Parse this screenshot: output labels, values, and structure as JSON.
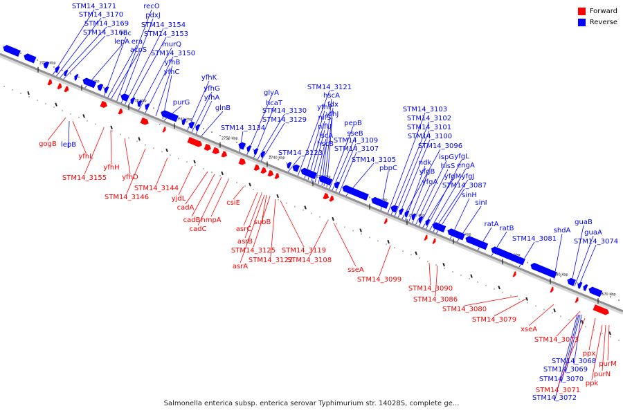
{
  "caption": "Salmonella enterica subsp. enterica serovar Typhimurium str. 14028S, complete ge...",
  "legend": [
    {
      "label": "Forward",
      "color": "#ff0000"
    },
    {
      "label": "Reverse",
      "color": "#0000ff"
    }
  ],
  "colors": {
    "forward": "#ff0000",
    "reverse": "#0000ff",
    "backbone": "#909090"
  },
  "ticks": [
    "2790 kbp",
    "2780 kbp",
    "2770 kbp",
    "2760 kbp",
    "2750 kbp",
    "2740 kbp",
    "2730 kbp",
    "2720 kbp",
    "2710 kbp",
    "2700 kbp",
    "2690 kbp",
    "2680 kbp",
    "2670 kbp"
  ],
  "reverse_labels": [
    "STM14_3171",
    "STM14_3170",
    "STM14_3169",
    "STM14_3168",
    "lepA",
    "rnc",
    "era",
    "acpS",
    "recO",
    "pdxJ",
    "STM14_3154",
    "STM14_3153",
    "murQ",
    "STM14_3150",
    "yfhB",
    "yfhC",
    "purG",
    "yfhK",
    "yfhG",
    "yfhA",
    "glnB",
    "STM14_3134",
    "glyA",
    "hcaT",
    "STM14_3130",
    "STM14_3129",
    "STM14_3123",
    "STM14_3121",
    "yfhP",
    "nifS",
    "nifU",
    "iscA",
    "hscB",
    "hscA",
    "fdx",
    "yfhJ",
    "pepB",
    "sseB",
    "STM14_3109",
    "STM14_3107",
    "STM14_3105",
    "pbpC",
    "STM14_3103",
    "STM14_3102",
    "STM14_3101",
    "STM14_3100",
    "STM14_3096",
    "ndk",
    "yfgB",
    "yfgA",
    "ispG",
    "hisS",
    "yfgM",
    "yfgL",
    "engA",
    "yfgJ",
    "STM14_3087",
    "sinH",
    "sinI",
    "ratA",
    "ratB",
    "STM14_3081",
    "shdA",
    "guaB",
    "guaA",
    "STM14_3074",
    "lepB",
    "STM14_3068",
    "STM14_3069",
    "STM14_3070",
    "STM14_3072"
  ],
  "forward_labels": [
    "gogB",
    "yfhL",
    "yfhH",
    "STM14_3155",
    "yfhD",
    "STM14_3146",
    "STM14_3144",
    "yjdL",
    "cadA",
    "cadB",
    "cadC",
    "hmpA",
    "csiE",
    "asrC",
    "asrB",
    "subB",
    "STM14_3125",
    "STM14_3122",
    "asrA",
    "STM14_3119",
    "STM14_3108",
    "sseA",
    "STM14_3099",
    "STM14_3090",
    "STM14_3086",
    "STM14_3080",
    "STM14_3079",
    "xseA",
    "STM14_3073",
    "ppx",
    "purM",
    "purN",
    "ppk",
    "STM14_3071"
  ]
}
